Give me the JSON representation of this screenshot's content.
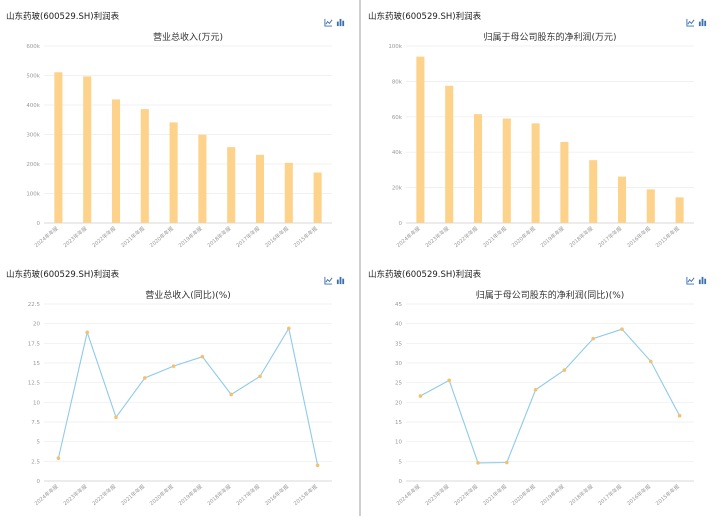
{
  "icons": {
    "line_toggle": "line-chart-icon",
    "bar_toggle": "bar-chart-icon"
  },
  "colors": {
    "bar": "#fdd28a",
    "line": "#8ecbe8",
    "point": "#f5c06c",
    "grid": "#ececec",
    "axis": "#999999",
    "divider": "#cfcfcf"
  },
  "panels": [
    {
      "header": "山东药玻(600529.SH)利润表",
      "chart_data": {
        "type": "bar",
        "title": "营业总收入(万元)",
        "categories": [
          "2024年年报",
          "2023年年报",
          "2022年年报",
          "2021年年报",
          "2020年年报",
          "2019年年报",
          "2018年年报",
          "2017年年报",
          "2016年年报",
          "2015年年报"
        ],
        "values": [
          511000,
          497000,
          419000,
          386000,
          341000,
          299000,
          257000,
          231000,
          204000,
          171000
        ],
        "ylim": [
          0,
          600000
        ],
        "yticks": [
          0,
          100000,
          200000,
          300000,
          400000,
          500000,
          600000
        ],
        "ytick_labels": [
          "0",
          "100k",
          "200k",
          "300k",
          "400k",
          "500k",
          "600k"
        ]
      }
    },
    {
      "header": "山东药玻(600529.SH)利润表",
      "chart_data": {
        "type": "bar",
        "title": "归属于母公司股东的净利润(万元)",
        "categories": [
          "2024年年报",
          "2023年年报",
          "2022年年报",
          "2021年年报",
          "2020年年报",
          "2019年年报",
          "2018年年报",
          "2017年年报",
          "2016年年报",
          "2015年年报"
        ],
        "values": [
          94000,
          77500,
          61500,
          59000,
          56300,
          45800,
          35500,
          26200,
          19000,
          14500
        ],
        "ylim": [
          0,
          100000
        ],
        "yticks": [
          0,
          20000,
          40000,
          60000,
          80000,
          100000
        ],
        "ytick_labels": [
          "0",
          "20k",
          "40k",
          "60k",
          "80k",
          "100k"
        ]
      }
    },
    {
      "header": "山东药玻(600529.SH)利润表",
      "chart_data": {
        "type": "line",
        "title": "营业总收入(同比)(%)",
        "categories": [
          "2024年年报",
          "2023年年报",
          "2022年年报",
          "2021年年报",
          "2020年年报",
          "2019年年报",
          "2018年年报",
          "2017年年报",
          "2016年年报",
          "2015年年报"
        ],
        "values": [
          2.9,
          18.9,
          8.1,
          13.1,
          14.6,
          15.8,
          11.0,
          13.3,
          19.4,
          2.0
        ],
        "ylim": [
          0,
          22.5
        ],
        "yticks": [
          0,
          2.5,
          5,
          7.5,
          10,
          12.5,
          15,
          17.5,
          20,
          22.5
        ],
        "ytick_labels": [
          "0",
          "2.5",
          "5",
          "7.5",
          "10",
          "12.5",
          "15",
          "17.5",
          "20",
          "22.5"
        ]
      }
    },
    {
      "header": "山东药玻(600529.SH)利润表",
      "chart_data": {
        "type": "line",
        "title": "归属于母公司股东的净利润(同比)(%)",
        "categories": [
          "2024年年报",
          "2023年年报",
          "2022年年报",
          "2021年年报",
          "2020年年报",
          "2019年年报",
          "2018年年报",
          "2017年年报",
          "2016年年报",
          "2015年年报"
        ],
        "values": [
          21.6,
          25.6,
          4.6,
          4.7,
          23.2,
          28.2,
          36.2,
          38.6,
          30.4,
          16.6
        ],
        "ylim": [
          0,
          45
        ],
        "yticks": [
          0,
          5,
          10,
          15,
          20,
          25,
          30,
          35,
          40,
          45
        ],
        "ytick_labels": [
          "0",
          "5",
          "10",
          "15",
          "20",
          "25",
          "30",
          "35",
          "40",
          "45"
        ]
      }
    }
  ]
}
